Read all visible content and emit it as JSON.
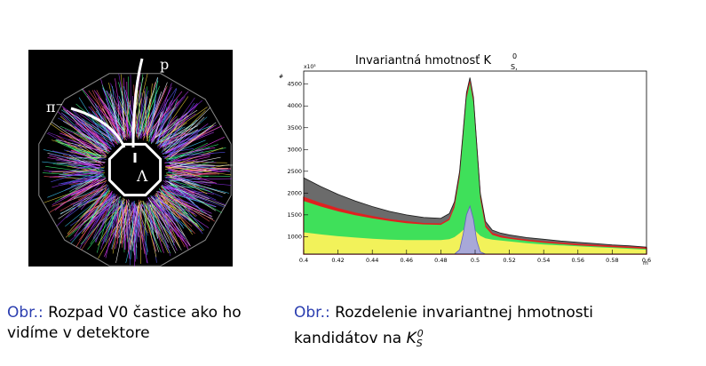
{
  "detector_figure": {
    "pion_label": "π⁻",
    "proton_label": "p",
    "lambda_label": "Λ"
  },
  "captions": {
    "left": {
      "prefix": "Obr.:",
      "text": "Rozpad V0 častice ako ho vidíme v detektore"
    },
    "right": {
      "prefix": "Obr.:",
      "text": "Rozdelenie invariantnej hmotnosti kandidátov na",
      "symbol_base": "K",
      "symbol_sub": "S",
      "symbol_sup": "0"
    }
  },
  "colors": {
    "caption_label": "#2b3eb0",
    "total": "#6b6b6b",
    "red_band": "#e02020",
    "green": "#3fe05a",
    "yellow": "#f2f25a",
    "signal": "#a8a8d8"
  },
  "chart_data": {
    "type": "area",
    "title": "Invariantná hmotnosť K",
    "title_sub": "S,",
    "title_sup": "0",
    "ylabel": "#",
    "exponent_label": "x10³",
    "xlabel": "m",
    "xlim": [
      0.4,
      0.6
    ],
    "ylim": [
      600,
      4800
    ],
    "x_ticks": [
      "0.4",
      "0.42",
      "0.44",
      "0.46",
      "0.48",
      "0.5",
      "0.52",
      "0.54",
      "0.56",
      "0.58",
      "0.6"
    ],
    "y_ticks": [
      "1000",
      "1500",
      "2000",
      "2500",
      "3000",
      "3500",
      "4000",
      "4500"
    ],
    "x": [
      0.4,
      0.41,
      0.42,
      0.43,
      0.44,
      0.45,
      0.46,
      0.47,
      0.48,
      0.485,
      0.488,
      0.491,
      0.493,
      0.495,
      0.497,
      0.499,
      0.501,
      0.503,
      0.506,
      0.51,
      0.515,
      0.52,
      0.53,
      0.54,
      0.55,
      0.56,
      0.57,
      0.58,
      0.59,
      0.6
    ],
    "series": [
      {
        "values": [
          2350,
          2150,
          1970,
          1820,
          1690,
          1580,
          1500,
          1440,
          1420,
          1530,
          1800,
          2500,
          3400,
          4300,
          4650,
          4200,
          3100,
          2000,
          1350,
          1150,
          1080,
          1040,
          980,
          940,
          900,
          870,
          840,
          810,
          790,
          760
        ]
      },
      {
        "values": [
          1900,
          1760,
          1640,
          1540,
          1460,
          1390,
          1340,
          1300,
          1290,
          1400,
          1700,
          2400,
          3300,
          4200,
          4560,
          4100,
          3000,
          1900,
          1250,
          1070,
          1010,
          970,
          920,
          880,
          850,
          820,
          800,
          780,
          760,
          740
        ]
      },
      {
        "values": [
          1820,
          1690,
          1580,
          1490,
          1420,
          1360,
          1310,
          1280,
          1270,
          1380,
          1670,
          2370,
          3270,
          4170,
          4530,
          4070,
          2970,
          1870,
          1220,
          1040,
          980,
          950,
          900,
          860,
          830,
          800,
          780,
          760,
          740,
          720
        ]
      },
      {
        "values": [
          1100,
          1050,
          1010,
          980,
          950,
          930,
          920,
          920,
          920,
          940,
          990,
          1080,
          1150,
          1200,
          1230,
          1190,
          1100,
          1020,
          960,
          930,
          910,
          890,
          850,
          820,
          800,
          780,
          760,
          740,
          720,
          700
        ]
      },
      {
        "values": [
          600,
          600,
          600,
          600,
          600,
          600,
          600,
          600,
          600,
          600,
          600,
          700,
          1050,
          1500,
          1700,
          1400,
          900,
          650,
          600,
          600,
          600,
          600,
          600,
          600,
          600,
          600,
          600,
          600,
          600,
          600
        ]
      }
    ]
  }
}
